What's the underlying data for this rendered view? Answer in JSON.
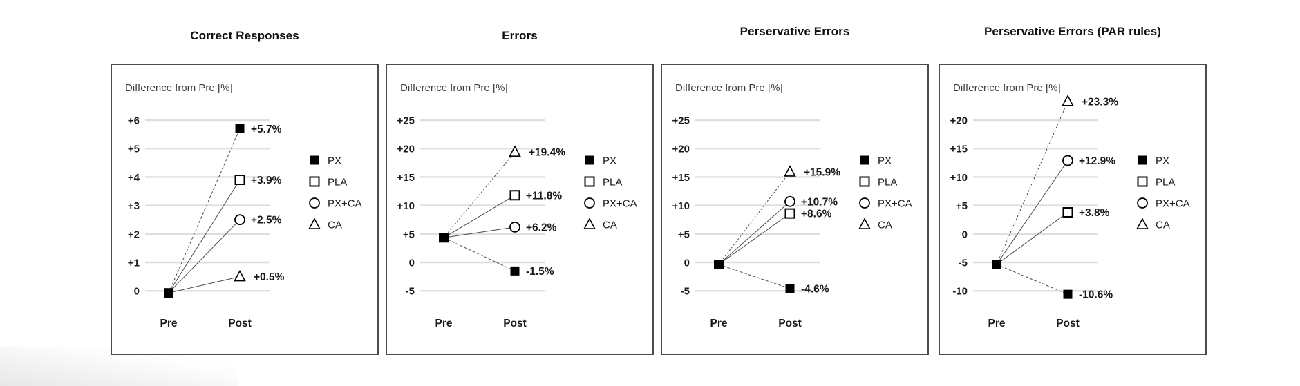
{
  "page": {
    "background": "#ffffff",
    "x_axis_labels": [
      "Pre",
      "Post"
    ],
    "axis_note": "Difference from Pre [%]"
  },
  "colors": {
    "text": "#1a1a1a",
    "panel_border": "#4c4c4c",
    "gridline": "#dedede",
    "series_line": "#4a4a4a",
    "marker_fill": "#000000",
    "marker_open_fill": "#ffffff"
  },
  "legend": {
    "items": [
      {
        "label": "PX",
        "marker": "filled-square-icon"
      },
      {
        "label": "PLA",
        "marker": "open-square-icon"
      },
      {
        "label": "PX+CA",
        "marker": "open-circle-icon"
      },
      {
        "label": "CA",
        "marker": "open-triangle-icon"
      }
    ]
  },
  "chart_data": [
    {
      "type": "line",
      "id": "correct-responses",
      "title": "Correct Responses",
      "axis_note": "Difference from Pre [%]",
      "x": [
        "Pre",
        "Post"
      ],
      "ytick_labels": [
        "+6",
        "+5",
        "+4",
        "+3",
        "+2",
        "+1",
        "0"
      ],
      "ytick_values": [
        6,
        5,
        4,
        3,
        2,
        1,
        0
      ],
      "pre_plot_value": 0,
      "legend_position": "right",
      "grid": true,
      "series": [
        {
          "name": "PX",
          "marker": "filled-square",
          "post_value": 5.7,
          "label": "+5.7%",
          "line_style": "dashed"
        },
        {
          "name": "PLA",
          "marker": "open-square",
          "post_value": 3.9,
          "label": "+3.9%",
          "line_style": "solid"
        },
        {
          "name": "PX+CA",
          "marker": "open-circle",
          "post_value": 2.5,
          "label": "+2.5%",
          "line_style": "solid"
        },
        {
          "name": "CA",
          "marker": "open-triangle",
          "post_value": 0.5,
          "label": "+0.5%",
          "line_style": "solid"
        }
      ]
    },
    {
      "type": "line",
      "id": "errors",
      "title": "Errors",
      "axis_note": "Difference from Pre [%]",
      "x": [
        "Pre",
        "Post"
      ],
      "ytick_labels": [
        "+25",
        "+20",
        "+15",
        "+10",
        "+5",
        "0",
        "-5"
      ],
      "ytick_values": [
        25,
        20,
        15,
        10,
        5,
        0,
        -5
      ],
      "pre_plot_value": 4.7,
      "legend_position": "right",
      "grid": true,
      "series": [
        {
          "name": "PX",
          "marker": "filled-square",
          "post_value": -1.5,
          "label": "-1.5%",
          "line_style": "dashed"
        },
        {
          "name": "PLA",
          "marker": "open-square",
          "post_value": 11.8,
          "label": "+11.8%",
          "line_style": "solid"
        },
        {
          "name": "PX+CA",
          "marker": "open-circle",
          "post_value": 6.2,
          "label": "+6.2%",
          "line_style": "solid"
        },
        {
          "name": "CA",
          "marker": "open-triangle",
          "post_value": 19.4,
          "label": "+19.4%",
          "line_style": "dotted"
        }
      ]
    },
    {
      "type": "line",
      "id": "perservative-errors",
      "title": "Perservative Errors",
      "axis_note": "Difference from Pre [%]",
      "x": [
        "Pre",
        "Post"
      ],
      "ytick_labels": [
        "+25",
        "+20",
        "+15",
        "+10",
        "+5",
        "0",
        "-5"
      ],
      "ytick_values": [
        25,
        20,
        15,
        10,
        5,
        0,
        -5
      ],
      "pre_plot_value": 0,
      "legend_position": "right",
      "grid": true,
      "series": [
        {
          "name": "PX",
          "marker": "filled-square",
          "post_value": -4.6,
          "label": "-4.6%",
          "line_style": "dashed"
        },
        {
          "name": "PLA",
          "marker": "open-square",
          "post_value": 8.6,
          "label": "+8.6%",
          "line_style": "solid"
        },
        {
          "name": "PX+CA",
          "marker": "open-circle",
          "post_value": 10.7,
          "label": "+10.7%",
          "line_style": "solid"
        },
        {
          "name": "CA",
          "marker": "open-triangle",
          "post_value": 15.9,
          "label": "+15.9%",
          "line_style": "dotted"
        }
      ]
    },
    {
      "type": "line",
      "id": "perservative-errors-par-rules",
      "title": "Perservative Errors (PAR rules)",
      "axis_note": "Difference from Pre [%]",
      "x": [
        "Pre",
        "Post"
      ],
      "ytick_labels": [
        "+20",
        "+15",
        "+10",
        "+5",
        "0",
        "-5",
        "-10"
      ],
      "ytick_values": [
        20,
        15,
        10,
        5,
        0,
        -5,
        -10
      ],
      "pre_plot_value": -5,
      "legend_position": "right",
      "grid": true,
      "series": [
        {
          "name": "PX",
          "marker": "filled-square",
          "post_value": -10.6,
          "label": "-10.6%",
          "line_style": "dashed"
        },
        {
          "name": "PLA",
          "marker": "open-square",
          "post_value": 3.8,
          "label": "+3.8%",
          "line_style": "solid"
        },
        {
          "name": "PX+CA",
          "marker": "open-circle",
          "post_value": 12.9,
          "label": "+12.9%",
          "line_style": "solid"
        },
        {
          "name": "CA",
          "marker": "open-triangle",
          "post_value": 23.3,
          "label": "+23.3%",
          "line_style": "dotted"
        }
      ]
    }
  ]
}
